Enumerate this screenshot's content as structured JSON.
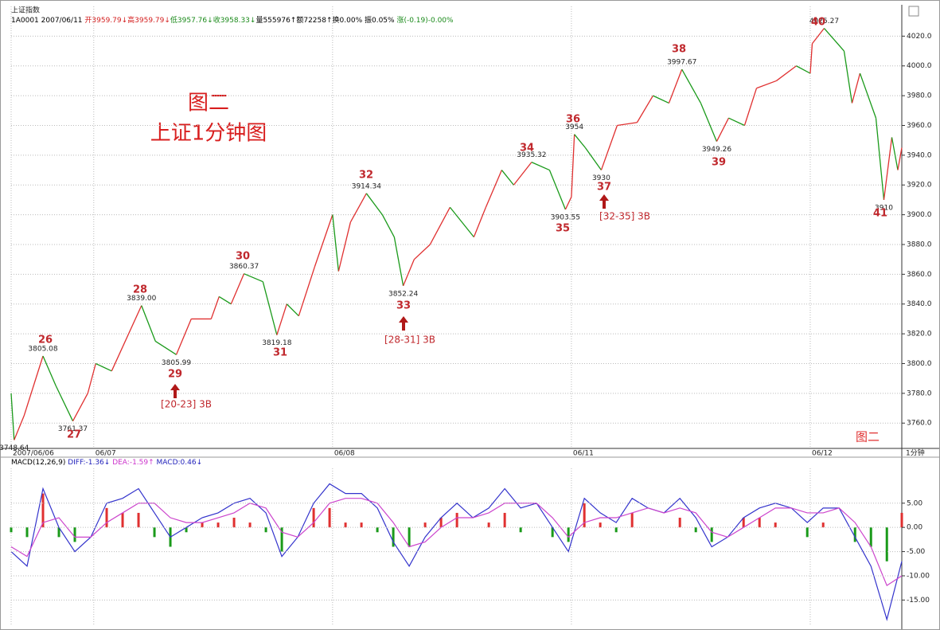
{
  "header": {
    "name": "上证指数",
    "quote": [
      {
        "text": "1A0001 2007/06/11 ",
        "color": "#000000"
      },
      {
        "text": "开3959.79↓",
        "color": "#d42020"
      },
      {
        "text": "高3959.79↓",
        "color": "#d42020"
      },
      {
        "text": "低3957.76↓",
        "color": "#1a8a1a"
      },
      {
        "text": "收3958.33↓",
        "color": "#1a8a1a"
      },
      {
        "text": "量555976↑",
        "color": "#000000"
      },
      {
        "text": "额72258↑",
        "color": "#000000"
      },
      {
        "text": "换0.00% ",
        "color": "#000000"
      },
      {
        "text": "振0.05% ",
        "color": "#000000"
      },
      {
        "text": "涨(-0.19)-0.00%",
        "color": "#1a8a1a"
      }
    ]
  },
  "chart_data": [
    {
      "type": "line",
      "title": "图二",
      "subtitle": "上证1分钟图",
      "x_axis_label": "1分钟",
      "x": [
        0,
        3,
        13,
        32,
        45,
        62,
        77,
        85,
        101,
        131,
        145,
        166,
        181,
        201,
        209,
        221,
        234,
        253,
        267,
        277,
        289,
        305,
        323,
        329,
        341,
        357,
        373,
        385,
        394,
        405,
        421,
        441,
        465,
        477,
        493,
        505,
        523,
        541,
        557,
        563,
        566,
        577,
        593,
        609,
        629,
        645,
        661,
        674,
        693,
        709,
        721,
        737,
        749,
        769,
        789,
        803,
        805,
        817,
        837,
        845,
        853,
        869,
        877,
        885,
        891,
        895
      ],
      "values": [
        3780,
        3748.64,
        3765,
        3805.08,
        3785,
        3761.37,
        3780,
        3800,
        3795,
        3839,
        3815,
        3805.99,
        3830,
        3830,
        3845,
        3840,
        3860.37,
        3855,
        3819.18,
        3840,
        3832,
        3865,
        3900,
        3862,
        3895,
        3914.34,
        3900,
        3885,
        3852.24,
        3870,
        3880,
        3905,
        3885,
        3905,
        3930,
        3920,
        3935.32,
        3930,
        3903.55,
        3912,
        3954,
        3945,
        3930,
        3960,
        3962,
        3980,
        3975,
        3997.67,
        3975,
        3949.26,
        3965,
        3960,
        3985,
        3990,
        4000,
        3995,
        4015,
        4025.27,
        4010,
        3975,
        3995,
        3965,
        3910,
        3952,
        3930,
        3945
      ],
      "value_labels": [
        null,
        "3748.64",
        null,
        "3805.08",
        null,
        "3761.37",
        null,
        null,
        null,
        "3839.00",
        null,
        "3805.99",
        null,
        null,
        null,
        null,
        "3860.37",
        null,
        "3819.18",
        null,
        null,
        null,
        null,
        null,
        null,
        "3914.34",
        null,
        null,
        "3852.24",
        null,
        null,
        null,
        null,
        null,
        null,
        null,
        "3935.32",
        null,
        "3903.55",
        null,
        "3954",
        null,
        "3930",
        null,
        null,
        null,
        null,
        "3997.67",
        null,
        "3949.26",
        null,
        null,
        null,
        null,
        null,
        null,
        null,
        "4025.27",
        null,
        null,
        null,
        null,
        "3910",
        null,
        null,
        null
      ],
      "up_color": "#e03030",
      "down_color": "#1a9a1a",
      "xlim": [
        0,
        895
      ],
      "xticks": [
        {
          "value": 0,
          "label": "2007/06/06"
        },
        {
          "value": 83,
          "label": "06/07"
        },
        {
          "value": 323,
          "label": "06/08"
        },
        {
          "value": 563,
          "label": "06/11"
        },
        {
          "value": 803,
          "label": "06/12"
        }
      ],
      "ylim": [
        3743,
        4040
      ],
      "yticks": [
        {
          "value": 3760,
          "label": "3760.0"
        },
        {
          "value": 3780,
          "label": "3780.0"
        },
        {
          "value": 3800,
          "label": "3800.0"
        },
        {
          "value": 3820,
          "label": "3820.0"
        },
        {
          "value": 3840,
          "label": "3840.0"
        },
        {
          "value": 3860,
          "label": "3860.0"
        },
        {
          "value": 3880,
          "label": "3880.0"
        },
        {
          "value": 3900,
          "label": "3900.0"
        },
        {
          "value": 3920,
          "label": "3920.0"
        },
        {
          "value": 3940,
          "label": "3940.0"
        },
        {
          "value": 3960,
          "label": "3960.0"
        },
        {
          "value": 3980,
          "label": "3980.0"
        },
        {
          "value": 4000,
          "label": "4000.0"
        },
        {
          "value": 4020,
          "label": "4020.0"
        }
      ],
      "grid": true,
      "annotations": [
        "26",
        "27",
        "28",
        "29",
        "30",
        "31",
        "32",
        "33",
        "34",
        "35",
        "36",
        "37",
        "38",
        "39",
        "40",
        "41"
      ],
      "notes": [
        "[20-23] 3B",
        "[28-31] 3B",
        "[32-35] 3B"
      ]
    },
    {
      "type": "macd",
      "indicator_label": [
        {
          "text": "MACD(12,26,9) ",
          "color": "#000000"
        },
        {
          "text": "DIFF:-1.36↓ ",
          "color": "#2222bb"
        },
        {
          "text": "DEA:-1.59↑ ",
          "color": "#cc33cc"
        },
        {
          "text": "MACD:0.46↓",
          "color": "#2222bb"
        }
      ],
      "x": [
        0,
        16,
        32,
        48,
        64,
        80,
        96,
        112,
        128,
        144,
        160,
        176,
        192,
        208,
        224,
        240,
        256,
        272,
        288,
        304,
        320,
        336,
        352,
        368,
        384,
        400,
        416,
        432,
        448,
        464,
        480,
        496,
        512,
        528,
        544,
        560,
        576,
        592,
        608,
        624,
        640,
        656,
        672,
        688,
        704,
        720,
        736,
        752,
        768,
        784,
        800,
        816,
        832,
        848,
        864,
        880,
        895
      ],
      "series": [
        {
          "name": "DIFF",
          "color": "#3333cc",
          "values": [
            -5,
            -8,
            8,
            0,
            -5,
            -2,
            5,
            6,
            8,
            3,
            -2,
            0,
            2,
            3,
            5,
            6,
            3,
            -6,
            -2,
            5,
            9,
            7,
            7,
            4,
            -3,
            -8,
            -2,
            2,
            5,
            2,
            4,
            8,
            4,
            5,
            0,
            -5,
            6,
            3,
            1,
            6,
            4,
            3,
            6,
            2,
            -4,
            -2,
            2,
            4,
            5,
            4,
            1,
            4,
            4,
            -2,
            -8,
            -19,
            -7
          ]
        },
        {
          "name": "DEA",
          "color": "#cc44cc",
          "values": [
            -4,
            -6,
            1,
            2,
            -2,
            -2,
            1,
            3,
            5,
            5,
            2,
            1,
            1,
            2,
            3,
            5,
            4,
            -1,
            -2,
            1,
            5,
            6,
            6,
            5,
            1,
            -4,
            -3,
            0,
            2,
            2,
            3,
            5,
            5,
            5,
            2,
            -2,
            1,
            2,
            2,
            3,
            4,
            3,
            4,
            3,
            -1,
            -2,
            0,
            2,
            4,
            4,
            3,
            3,
            4,
            1,
            -4,
            -12,
            -10
          ]
        },
        {
          "name": "MACD",
          "values": [
            -1,
            -2,
            7,
            -2,
            -3,
            0,
            4,
            3,
            3,
            -2,
            -4,
            -1,
            1,
            1,
            2,
            1,
            -1,
            -5,
            0,
            4,
            4,
            1,
            1,
            -1,
            -4,
            -4,
            1,
            2,
            3,
            0,
            1,
            3,
            -1,
            0,
            -2,
            -3,
            5,
            1,
            -1,
            3,
            0,
            0,
            2,
            -1,
            -3,
            0,
            2,
            2,
            1,
            0,
            -2,
            1,
            0,
            -3,
            -4,
            -7,
            3
          ]
        }
      ],
      "up_color": "#e03030",
      "down_color": "#1a9a1a",
      "xlim": [
        0,
        895
      ],
      "ylim": [
        -20.2,
        12.2
      ],
      "yticks": [
        {
          "value": 5,
          "label": "5.00"
        },
        {
          "value": 0,
          "label": "0.00"
        },
        {
          "value": -5,
          "label": "-5.00"
        },
        {
          "value": -10,
          "label": "-10.00"
        },
        {
          "value": -15,
          "label": "-15.00"
        }
      ],
      "grid": true
    }
  ]
}
